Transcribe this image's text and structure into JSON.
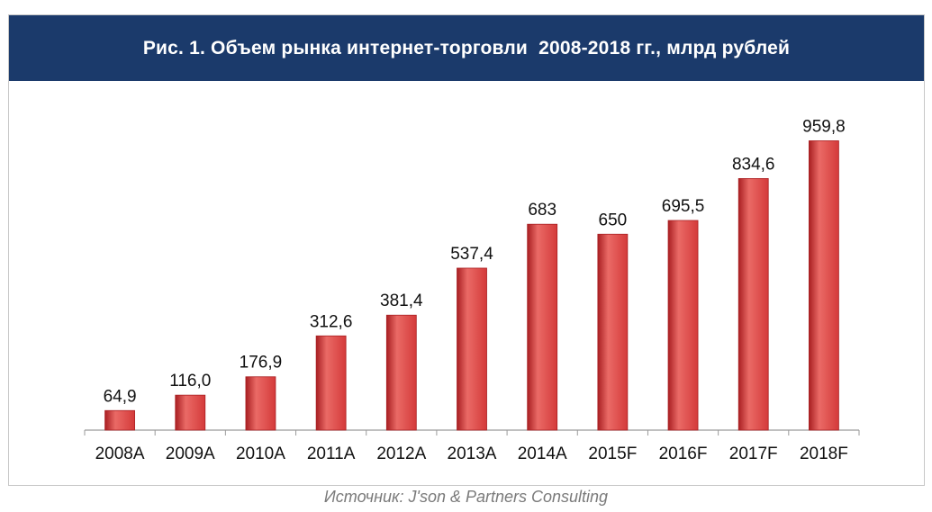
{
  "colors": {
    "title_background": "#1b3a6b",
    "bar": "#d43a3a",
    "bar_dark": "#a91f22",
    "bar_light": "#ea6a66",
    "axis": "#9a9a9a",
    "text": "#111111"
  },
  "chart_data": {
    "type": "bar",
    "title": "Рис. 1. Объем рынка интернет-торговли  2008-2018 гг., млрд рублей",
    "categories": [
      "2008A",
      "2009A",
      "2010A",
      "2011A",
      "2012A",
      "2013A",
      "2014A",
      "2015F",
      "2016F",
      "2017F",
      "2018F"
    ],
    "values": [
      64.9,
      116.0,
      176.9,
      312.6,
      381.4,
      537.4,
      683,
      650,
      695.5,
      834.6,
      959.8
    ],
    "value_labels": [
      "64,9",
      "116,0",
      "176,9",
      "312,6",
      "381,4",
      "537,4",
      "683",
      "650",
      "695,5",
      "834,6",
      "959,8"
    ],
    "xlabel": "",
    "ylabel": "",
    "ylim": [
      0,
      1000
    ],
    "grid": false,
    "legend": "none"
  },
  "source": "Источник: J'son & Partners Consulting"
}
